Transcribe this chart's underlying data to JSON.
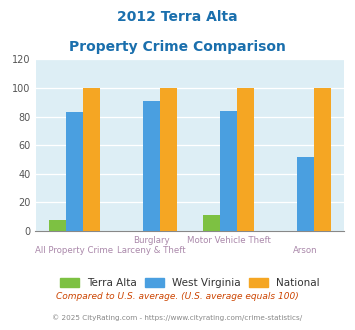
{
  "title_line1": "2012 Terra Alta",
  "title_line2": "Property Crime Comparison",
  "cat_labels_row1": [
    "",
    "Burglary",
    "Motor Vehicle Theft",
    ""
  ],
  "cat_labels_row2": [
    "All Property Crime",
    "Larceny & Theft",
    "",
    "Arson"
  ],
  "series": {
    "Terra Alta": [
      8,
      0,
      11,
      0
    ],
    "West Virginia": [
      83,
      91,
      84,
      52
    ],
    "National": [
      100,
      100,
      100,
      100
    ]
  },
  "colors": {
    "Terra Alta": "#7dc142",
    "West Virginia": "#4a9fe0",
    "National": "#f5a623"
  },
  "ylim": [
    0,
    120
  ],
  "yticks": [
    0,
    20,
    40,
    60,
    80,
    100,
    120
  ],
  "background_color": "#ddeef5",
  "title_color": "#1a6fad",
  "axis_label_color": "#aa88aa",
  "legend_items": [
    "Terra Alta",
    "West Virginia",
    "National"
  ],
  "footer_text1": "Compared to U.S. average. (U.S. average equals 100)",
  "footer_text2": "© 2025 CityRating.com - https://www.cityrating.com/crime-statistics/",
  "footer_color1": "#cc4400",
  "footer_color2": "#888888"
}
